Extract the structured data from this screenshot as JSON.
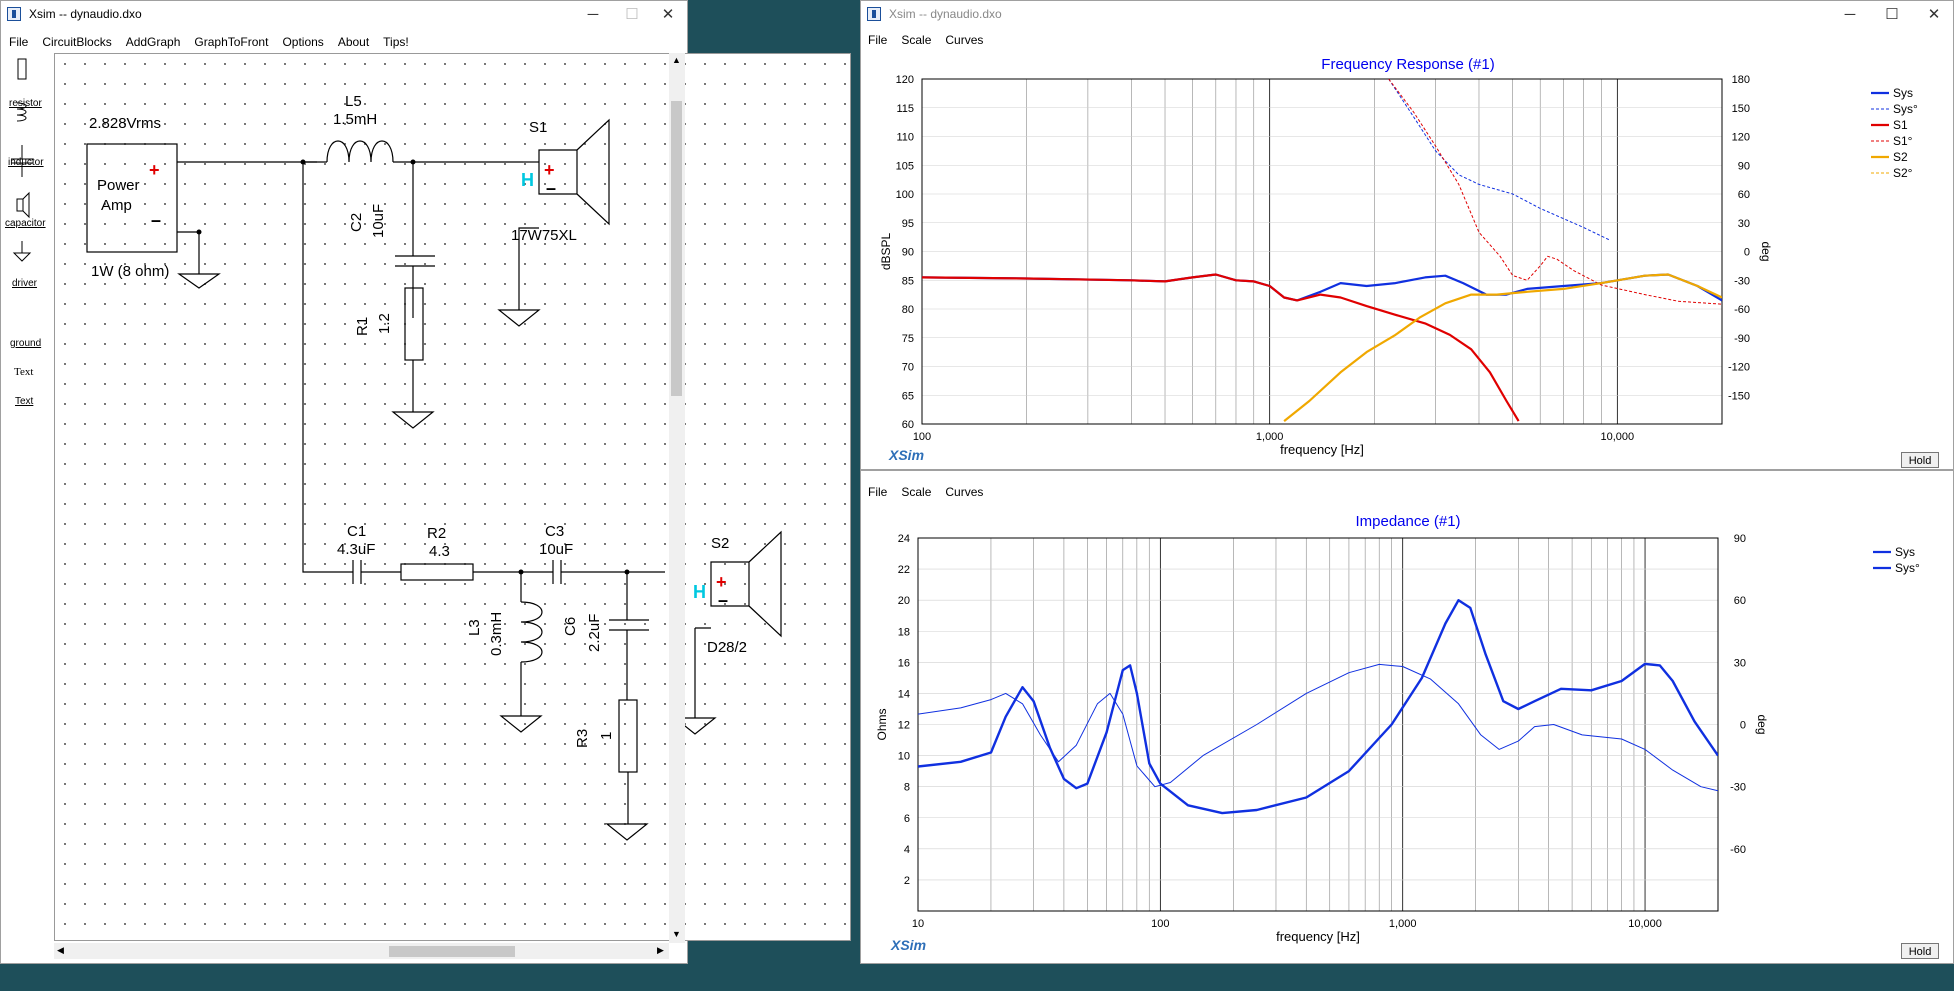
{
  "schematic": {
    "title": "Xsim -- dynaudio.dxo",
    "menu": [
      "File",
      "CircuitBlocks",
      "AddGraph",
      "GraphToFront",
      "Options",
      "About",
      "Tips!"
    ],
    "tools": [
      "resistor",
      "inductor",
      "capacitor",
      "driver",
      "ground",
      "Text",
      "Text"
    ],
    "labels": {
      "amp_voltage": "2.828Vrms",
      "amp_name1": "Power",
      "amp_name2": "Amp",
      "amp_note": "1W (8 ohm)",
      "l5_name": "L5",
      "l5_val": "1.5mH",
      "s1_name": "S1",
      "s1_model": "17W75XL",
      "c2_name": "C2",
      "c2_val": "10uF",
      "r1_name": "R1",
      "r1_val": "1.2",
      "c1_name": "C1",
      "c1_val": "4.3uF",
      "r2_name": "R2",
      "r2_val": "4.3",
      "c3_name": "C3",
      "c3_val": "10uF",
      "s2_name": "S2",
      "s2_model": "D28/2",
      "l3_name": "L3",
      "l3_val": "0.3mH",
      "c6_name": "C6",
      "c6_val": "2.2uF",
      "r3_name": "R3",
      "r3_val": "1"
    }
  },
  "freq_window": {
    "title": "Xsim -- dynaudio.dxo",
    "menu": [
      "File",
      "Scale",
      "Curves"
    ],
    "graph_title": "Frequency Response (#1)",
    "ylabel": "dBSPL",
    "y2label": "deg",
    "xlabel": "frequency [Hz]",
    "brand": "XSim",
    "hold_label": "Hold"
  },
  "imp_window": {
    "title": "Xsim -- dynaudio.dxo",
    "menu": [
      "File",
      "Scale",
      "Curves"
    ],
    "graph_title": "Impedance (#1)",
    "ylabel": "Ohms",
    "y2label": "deg",
    "xlabel": "frequency [Hz]",
    "brand": "XSim",
    "hold_label": "Hold"
  },
  "chart_data": [
    {
      "type": "line",
      "title": "Frequency Response (#1)",
      "xlabel": "frequency [Hz]",
      "ylabel": "dBSPL",
      "y2label": "deg",
      "xscale": "log",
      "xlim": [
        100,
        20000
      ],
      "ylim": [
        60,
        120
      ],
      "y2lim": [
        -180,
        180
      ],
      "xticks": [
        {
          "v": 100,
          "label": "100"
        },
        {
          "v": 1000,
          "label": "1,000"
        },
        {
          "v": 10000,
          "label": "10,000"
        }
      ],
      "yticks": [
        60,
        65,
        70,
        75,
        80,
        85,
        90,
        95,
        100,
        105,
        110,
        115,
        120
      ],
      "y2ticks": [
        -150,
        -120,
        -90,
        -60,
        -30,
        0,
        30,
        60,
        90,
        120,
        150,
        180
      ],
      "legend": "top-right",
      "series": [
        {
          "name": "Sys",
          "axis": "y",
          "color": "#1030e0",
          "style": "solid",
          "width": 2.2,
          "points": [
            [
              100,
              85.5
            ],
            [
              200,
              85.3
            ],
            [
              400,
              85
            ],
            [
              500,
              84.8
            ],
            [
              600,
              85.5
            ],
            [
              700,
              86
            ],
            [
              800,
              85
            ],
            [
              900,
              84.8
            ],
            [
              1000,
              84
            ],
            [
              1100,
              82
            ],
            [
              1200,
              81.5
            ],
            [
              1400,
              83
            ],
            [
              1600,
              84.5
            ],
            [
              1900,
              84
            ],
            [
              2300,
              84.5
            ],
            [
              2800,
              85.5
            ],
            [
              3200,
              85.8
            ],
            [
              3600,
              84.5
            ],
            [
              4200,
              82.5
            ],
            [
              4800,
              82.5
            ],
            [
              5500,
              83.5
            ],
            [
              7000,
              84
            ],
            [
              9000,
              84.5
            ],
            [
              12000,
              85.8
            ],
            [
              14000,
              86
            ],
            [
              17000,
              84
            ],
            [
              20000,
              81.5
            ]
          ]
        },
        {
          "name": "Sys°",
          "axis": "y2",
          "color": "#1030e0",
          "style": "dashed",
          "width": 1,
          "points": [
            [
              2200,
              180
            ],
            [
              2600,
              140
            ],
            [
              3000,
              105
            ],
            [
              3500,
              80
            ],
            [
              4000,
              70
            ],
            [
              5000,
              60
            ],
            [
              6000,
              45
            ],
            [
              8000,
              25
            ],
            [
              9500,
              12
            ]
          ]
        },
        {
          "name": "S1",
          "axis": "y",
          "color": "#e00000",
          "style": "solid",
          "width": 2.2,
          "points": [
            [
              100,
              85.5
            ],
            [
              200,
              85.3
            ],
            [
              400,
              85
            ],
            [
              500,
              84.8
            ],
            [
              600,
              85.5
            ],
            [
              700,
              86
            ],
            [
              800,
              85
            ],
            [
              900,
              84.8
            ],
            [
              1000,
              84
            ],
            [
              1100,
              82
            ],
            [
              1200,
              81.5
            ],
            [
              1400,
              82.5
            ],
            [
              1600,
              82
            ],
            [
              1900,
              80.5
            ],
            [
              2300,
              79
            ],
            [
              2800,
              77.5
            ],
            [
              3300,
              75.5
            ],
            [
              3800,
              73
            ],
            [
              4300,
              69
            ],
            [
              4800,
              64
            ],
            [
              5200,
              60.5
            ]
          ]
        },
        {
          "name": "S1°",
          "axis": "y2",
          "color": "#e00000",
          "style": "dashed",
          "width": 1,
          "points": [
            [
              2200,
              180
            ],
            [
              2600,
              145
            ],
            [
              3000,
              110
            ],
            [
              3500,
              70
            ],
            [
              4000,
              20
            ],
            [
              4600,
              -5
            ],
            [
              5000,
              -25
            ],
            [
              5500,
              -30
            ],
            [
              6000,
              -15
            ],
            [
              6300,
              -5
            ],
            [
              6700,
              -8
            ],
            [
              7500,
              -20
            ],
            [
              9000,
              -35
            ],
            [
              12000,
              -45
            ],
            [
              15000,
              -52
            ],
            [
              20000,
              -55
            ]
          ]
        },
        {
          "name": "S2",
          "axis": "y",
          "color": "#f0a800",
          "style": "solid",
          "width": 2.2,
          "points": [
            [
              1100,
              60.5
            ],
            [
              1300,
              64
            ],
            [
              1600,
              69
            ],
            [
              1900,
              72.5
            ],
            [
              2300,
              75.5
            ],
            [
              2700,
              78.5
            ],
            [
              3200,
              81
            ],
            [
              3800,
              82.5
            ],
            [
              4500,
              82.5
            ],
            [
              5500,
              83
            ],
            [
              7000,
              83.5
            ],
            [
              9000,
              84.5
            ],
            [
              12000,
              85.8
            ],
            [
              14000,
              86
            ],
            [
              17000,
              84
            ],
            [
              20000,
              82
            ]
          ]
        },
        {
          "name": "S2°",
          "axis": "y2",
          "color": "#f0a800",
          "style": "dashed",
          "width": 1,
          "points": []
        }
      ],
      "thin_series_note_free": true
    },
    {
      "type": "line",
      "title": "Impedance (#1)",
      "xlabel": "frequency [Hz]",
      "ylabel": "Ohms",
      "y2label": "deg",
      "xscale": "log",
      "xlim": [
        10,
        20000
      ],
      "ylim": [
        0,
        24
      ],
      "y2lim": [
        -90,
        90
      ],
      "xticks": [
        {
          "v": 10,
          "label": "10"
        },
        {
          "v": 100,
          "label": "100"
        },
        {
          "v": 1000,
          "label": "1,000"
        },
        {
          "v": 10000,
          "label": "10,000"
        }
      ],
      "yticks": [
        2,
        4,
        6,
        8,
        10,
        12,
        14,
        16,
        18,
        20,
        22,
        24
      ],
      "y2ticks": [
        -60,
        -30,
        0,
        30,
        60,
        90
      ],
      "legend": "top-right",
      "series": [
        {
          "name": "Sys",
          "axis": "y",
          "color": "#1030e0",
          "style": "solid",
          "width": 2.4,
          "points": [
            [
              10,
              9.3
            ],
            [
              15,
              9.6
            ],
            [
              20,
              10.2
            ],
            [
              23,
              12.5
            ],
            [
              27,
              14.4
            ],
            [
              30,
              13.5
            ],
            [
              35,
              10.5
            ],
            [
              40,
              8.5
            ],
            [
              45,
              7.9
            ],
            [
              50,
              8.2
            ],
            [
              60,
              11.5
            ],
            [
              70,
              15.5
            ],
            [
              75,
              15.8
            ],
            [
              80,
              14
            ],
            [
              90,
              9.5
            ],
            [
              100,
              8.2
            ],
            [
              130,
              6.8
            ],
            [
              180,
              6.3
            ],
            [
              250,
              6.5
            ],
            [
              400,
              7.3
            ],
            [
              600,
              9
            ],
            [
              900,
              12
            ],
            [
              1200,
              15
            ],
            [
              1500,
              18.5
            ],
            [
              1700,
              20
            ],
            [
              1900,
              19.5
            ],
            [
              2200,
              16.5
            ],
            [
              2600,
              13.5
            ],
            [
              3000,
              13
            ],
            [
              3500,
              13.5
            ],
            [
              4500,
              14.3
            ],
            [
              6000,
              14.2
            ],
            [
              8000,
              14.8
            ],
            [
              10000,
              15.9
            ],
            [
              11500,
              15.8
            ],
            [
              13000,
              14.8
            ],
            [
              16000,
              12.2
            ],
            [
              20000,
              10
            ]
          ]
        },
        {
          "name": "Sys°",
          "axis": "y2",
          "color": "#1030e0",
          "style": "solid",
          "width": 1,
          "points": [
            [
              10,
              5
            ],
            [
              15,
              8
            ],
            [
              20,
              12
            ],
            [
              23,
              15
            ],
            [
              27,
              10
            ],
            [
              32,
              -5
            ],
            [
              38,
              -18
            ],
            [
              45,
              -10
            ],
            [
              55,
              10
            ],
            [
              62,
              15
            ],
            [
              70,
              5
            ],
            [
              80,
              -20
            ],
            [
              95,
              -30
            ],
            [
              110,
              -28
            ],
            [
              150,
              -15
            ],
            [
              250,
              0
            ],
            [
              400,
              15
            ],
            [
              600,
              25
            ],
            [
              800,
              29
            ],
            [
              1000,
              28
            ],
            [
              1300,
              22
            ],
            [
              1700,
              10
            ],
            [
              2100,
              -5
            ],
            [
              2500,
              -12
            ],
            [
              3000,
              -8
            ],
            [
              3500,
              -1
            ],
            [
              4200,
              0
            ],
            [
              5500,
              -5
            ],
            [
              8000,
              -7
            ],
            [
              10000,
              -12
            ],
            [
              13000,
              -22
            ],
            [
              17000,
              -30
            ],
            [
              20000,
              -32
            ]
          ]
        }
      ]
    }
  ]
}
